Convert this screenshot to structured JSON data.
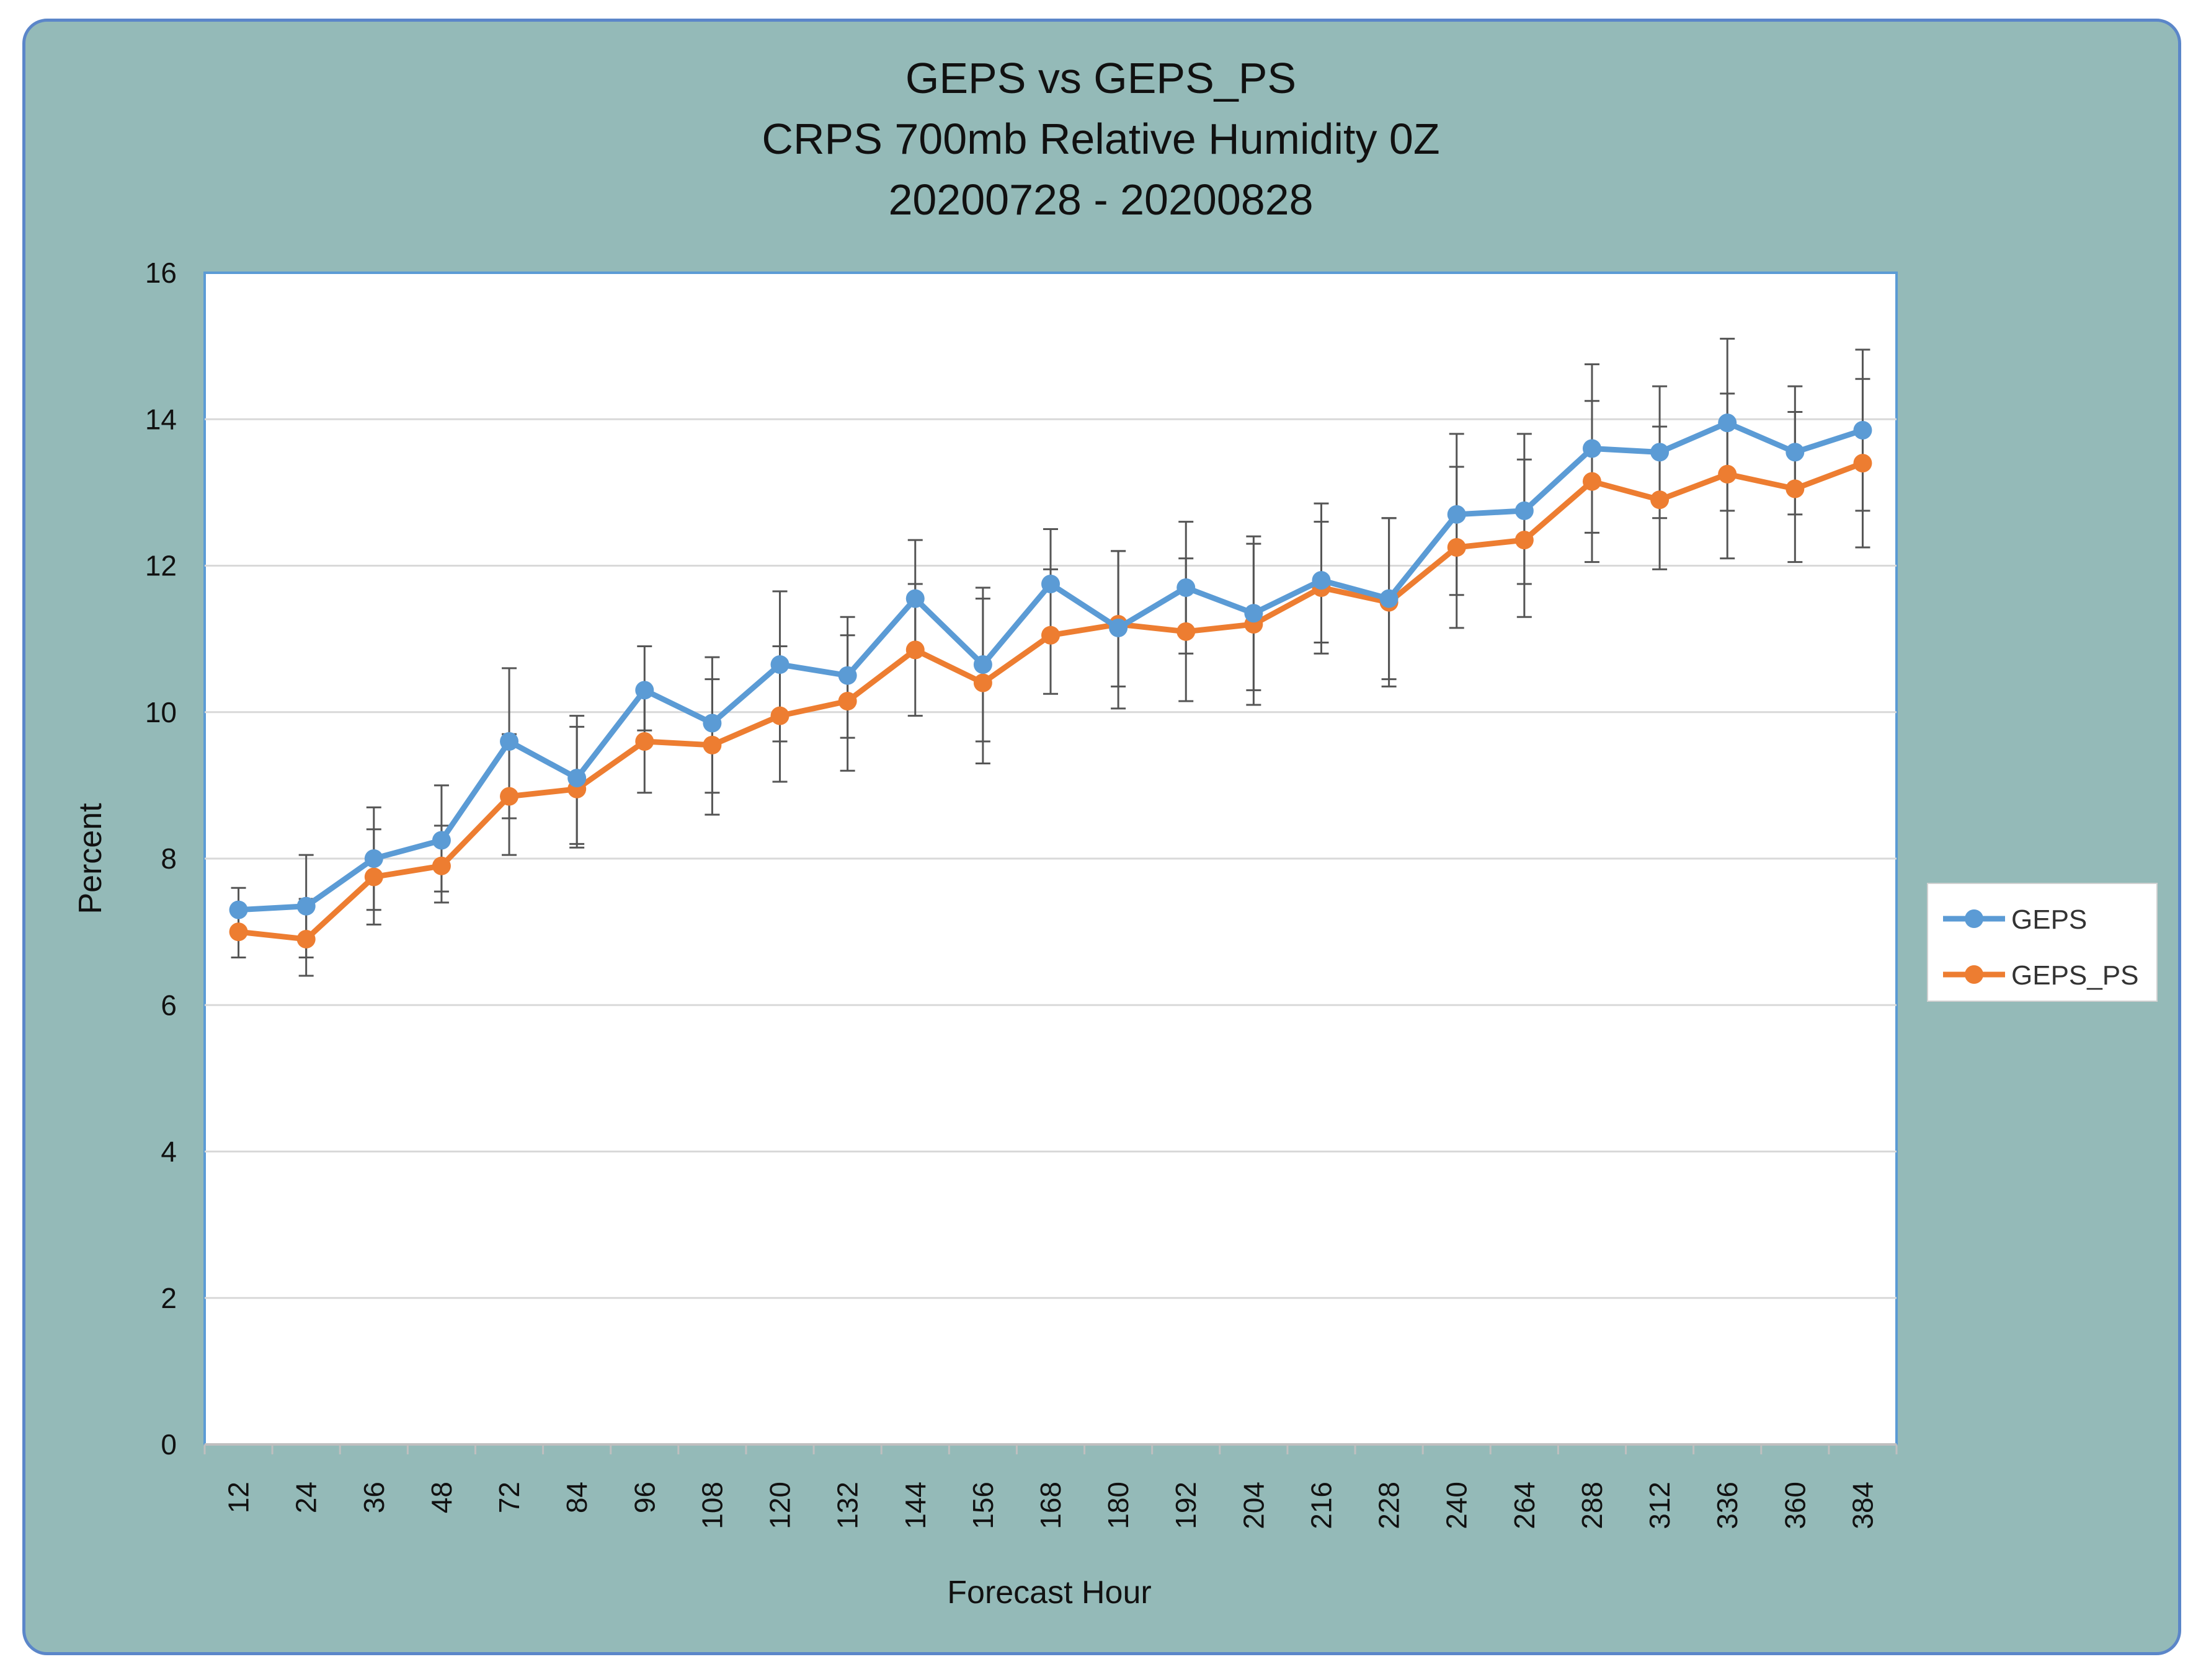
{
  "chart_data": {
    "type": "line",
    "title": [
      "GEPS vs GEPS_PS",
      "CRPS 700mb  Relative Humidity 0Z",
      "20200728 - 20200828"
    ],
    "xlabel": "Forecast Hour",
    "ylabel": "Percent",
    "categories": [
      "12",
      "24",
      "36",
      "48",
      "72",
      "84",
      "96",
      "108",
      "120",
      "132",
      "144",
      "156",
      "168",
      "180",
      "192",
      "204",
      "216",
      "228",
      "240",
      "264",
      "288",
      "312",
      "336",
      "360",
      "384"
    ],
    "ylim": [
      0,
      16
    ],
    "yticks": [
      "0",
      "2",
      "4",
      "6",
      "8",
      "10",
      "12",
      "14",
      "16"
    ],
    "grid": true,
    "legend_position": "right",
    "error_bars": true,
    "series": [
      {
        "name": "GEPS",
        "color": "#5b9bd5",
        "values": [
          7.3,
          7.35,
          8.0,
          8.25,
          9.6,
          9.1,
          10.3,
          9.85,
          10.65,
          10.5,
          11.55,
          10.65,
          11.75,
          11.15,
          11.7,
          11.35,
          11.8,
          11.55,
          12.7,
          12.75,
          13.6,
          13.55,
          13.95,
          13.55,
          13.85
        ],
        "err_low": [
          7.0,
          6.65,
          7.3,
          7.55,
          8.55,
          8.2,
          9.75,
          8.9,
          9.6,
          9.65,
          10.8,
          9.6,
          11.0,
          10.35,
          10.8,
          10.3,
          10.95,
          10.45,
          11.6,
          11.75,
          12.45,
          12.65,
          12.75,
          12.7,
          12.75
        ],
        "err_high": [
          7.6,
          8.05,
          8.7,
          9.0,
          10.6,
          9.95,
          10.9,
          10.75,
          11.65,
          11.3,
          12.35,
          11.7,
          12.5,
          12.2,
          12.6,
          12.4,
          12.85,
          12.65,
          13.8,
          13.8,
          14.75,
          14.45,
          15.1,
          14.45,
          14.95
        ]
      },
      {
        "name": "GEPS_PS",
        "color": "#ed7d31",
        "values": [
          7.0,
          6.9,
          7.75,
          7.9,
          8.85,
          8.95,
          9.6,
          9.55,
          9.95,
          10.15,
          10.85,
          10.4,
          11.05,
          11.2,
          11.1,
          11.2,
          11.7,
          11.5,
          12.25,
          12.35,
          13.15,
          12.9,
          13.25,
          13.05,
          13.4
        ],
        "err_low": [
          6.65,
          6.4,
          7.1,
          7.4,
          8.05,
          8.15,
          8.9,
          8.6,
          9.05,
          9.2,
          9.95,
          9.3,
          10.25,
          10.05,
          10.15,
          10.1,
          10.8,
          10.35,
          11.15,
          11.3,
          12.05,
          11.95,
          12.1,
          12.05,
          12.25
        ],
        "err_high": [
          7.35,
          7.45,
          8.4,
          8.45,
          9.7,
          9.8,
          10.35,
          10.45,
          10.9,
          11.05,
          11.75,
          11.55,
          11.95,
          12.2,
          12.1,
          12.3,
          12.6,
          12.65,
          13.35,
          13.45,
          14.25,
          13.9,
          14.35,
          14.1,
          14.55
        ]
      }
    ]
  }
}
